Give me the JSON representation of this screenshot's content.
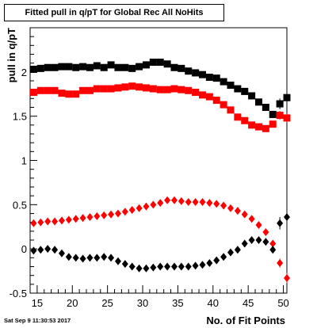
{
  "title": "Fitted pull in q/pT for Global Rec All NoHits",
  "stamp": "Sat Sep  9 11:30:53 2017",
  "chart_data": {
    "type": "scatter",
    "title": "Fitted pull in q/pT for Global Rec All NoHits",
    "xlabel": "No. of Fit Points",
    "ylabel": "pull in q/pT",
    "xlim": [
      14,
      50.5
    ],
    "ylim": [
      -0.5,
      2.5
    ],
    "x_ticks": [
      "15",
      "20",
      "25",
      "30",
      "35",
      "40",
      "45",
      "50"
    ],
    "y_ticks": [
      "-0.5",
      "0",
      "0.5",
      "1",
      "1.5",
      "2"
    ],
    "x": [
      14.5,
      15.5,
      16.5,
      17.5,
      18.5,
      19.5,
      20.5,
      21.5,
      22.5,
      23.5,
      24.5,
      25.5,
      26.5,
      27.5,
      28.5,
      29.5,
      30.5,
      31.5,
      32.5,
      33.5,
      34.5,
      35.5,
      36.5,
      37.5,
      38.5,
      39.5,
      40.5,
      41.5,
      42.5,
      43.5,
      44.5,
      45.5,
      46.5,
      47.5,
      48.5,
      49.5,
      50.5
    ],
    "series": [
      {
        "color": "#000000",
        "marker": "square",
        "values": [
          2.03,
          2.04,
          2.05,
          2.05,
          2.06,
          2.06,
          2.05,
          2.06,
          2.05,
          2.07,
          2.05,
          2.08,
          2.05,
          2.05,
          2.04,
          2.06,
          2.08,
          2.11,
          2.11,
          2.09,
          2.05,
          2.04,
          2.01,
          1.99,
          1.97,
          1.94,
          1.93,
          1.89,
          1.85,
          1.81,
          1.78,
          1.73,
          1.66,
          1.6,
          1.52,
          1.64,
          1.71
        ],
        "errors": [
          0.01,
          0.01,
          0.01,
          0.01,
          0.01,
          0.01,
          0.01,
          0.01,
          0.01,
          0.01,
          0.01,
          0.01,
          0.01,
          0.01,
          0.01,
          0.01,
          0.01,
          0.01,
          0.01,
          0.01,
          0.01,
          0.01,
          0.01,
          0.01,
          0.01,
          0.01,
          0.01,
          0.01,
          0.01,
          0.01,
          0.01,
          0.01,
          0.01,
          0.02,
          0.04,
          0.06,
          0.09
        ]
      },
      {
        "color": "#ff0000",
        "marker": "square",
        "values": [
          1.77,
          1.79,
          1.79,
          1.79,
          1.76,
          1.75,
          1.75,
          1.79,
          1.79,
          1.81,
          1.81,
          1.81,
          1.82,
          1.83,
          1.84,
          1.83,
          1.82,
          1.81,
          1.8,
          1.8,
          1.81,
          1.8,
          1.79,
          1.77,
          1.74,
          1.72,
          1.68,
          1.63,
          1.57,
          1.49,
          1.45,
          1.4,
          1.38,
          1.36,
          1.41,
          1.51,
          1.48
        ],
        "errors": [
          0.01,
          0.01,
          0.01,
          0.01,
          0.01,
          0.01,
          0.01,
          0.01,
          0.01,
          0.01,
          0.01,
          0.01,
          0.01,
          0.01,
          0.01,
          0.01,
          0.01,
          0.01,
          0.01,
          0.01,
          0.01,
          0.01,
          0.01,
          0.01,
          0.01,
          0.01,
          0.01,
          0.01,
          0.01,
          0.01,
          0.01,
          0.01,
          0.01,
          0.02,
          0.03,
          0.05,
          0.05
        ]
      },
      {
        "color": "#ff0000",
        "marker": "diamond",
        "values": [
          0.29,
          0.3,
          0.31,
          0.31,
          0.32,
          0.33,
          0.34,
          0.35,
          0.36,
          0.37,
          0.38,
          0.39,
          0.4,
          0.42,
          0.44,
          0.46,
          0.48,
          0.5,
          0.52,
          0.55,
          0.55,
          0.54,
          0.53,
          0.53,
          0.53,
          0.52,
          0.51,
          0.49,
          0.46,
          0.43,
          0.39,
          0.34,
          0.27,
          0.19,
          0.06,
          -0.16,
          -0.33
        ],
        "errors": [
          0.005,
          0.005,
          0.005,
          0.005,
          0.005,
          0.005,
          0.005,
          0.005,
          0.005,
          0.005,
          0.005,
          0.005,
          0.005,
          0.005,
          0.005,
          0.005,
          0.005,
          0.005,
          0.005,
          0.005,
          0.005,
          0.005,
          0.005,
          0.005,
          0.005,
          0.005,
          0.005,
          0.005,
          0.005,
          0.005,
          0.005,
          0.005,
          0.005,
          0.01,
          0.02,
          0.05,
          0.06
        ]
      },
      {
        "color": "#000000",
        "marker": "diamond",
        "values": [
          -0.02,
          -0.01,
          0.0,
          -0.01,
          -0.05,
          -0.09,
          -0.1,
          -0.11,
          -0.1,
          -0.1,
          -0.09,
          -0.1,
          -0.14,
          -0.17,
          -0.2,
          -0.22,
          -0.22,
          -0.21,
          -0.2,
          -0.2,
          -0.2,
          -0.2,
          -0.2,
          -0.19,
          -0.18,
          -0.16,
          -0.13,
          -0.09,
          -0.04,
          -0.01,
          0.06,
          0.1,
          0.1,
          0.08,
          -0.01,
          0.29,
          0.36
        ],
        "errors": [
          0.005,
          0.005,
          0.005,
          0.005,
          0.005,
          0.005,
          0.005,
          0.005,
          0.005,
          0.005,
          0.005,
          0.005,
          0.005,
          0.005,
          0.005,
          0.005,
          0.005,
          0.005,
          0.005,
          0.005,
          0.005,
          0.005,
          0.005,
          0.005,
          0.005,
          0.005,
          0.005,
          0.005,
          0.005,
          0.005,
          0.005,
          0.005,
          0.005,
          0.01,
          0.03,
          0.07,
          0.1
        ]
      }
    ]
  }
}
